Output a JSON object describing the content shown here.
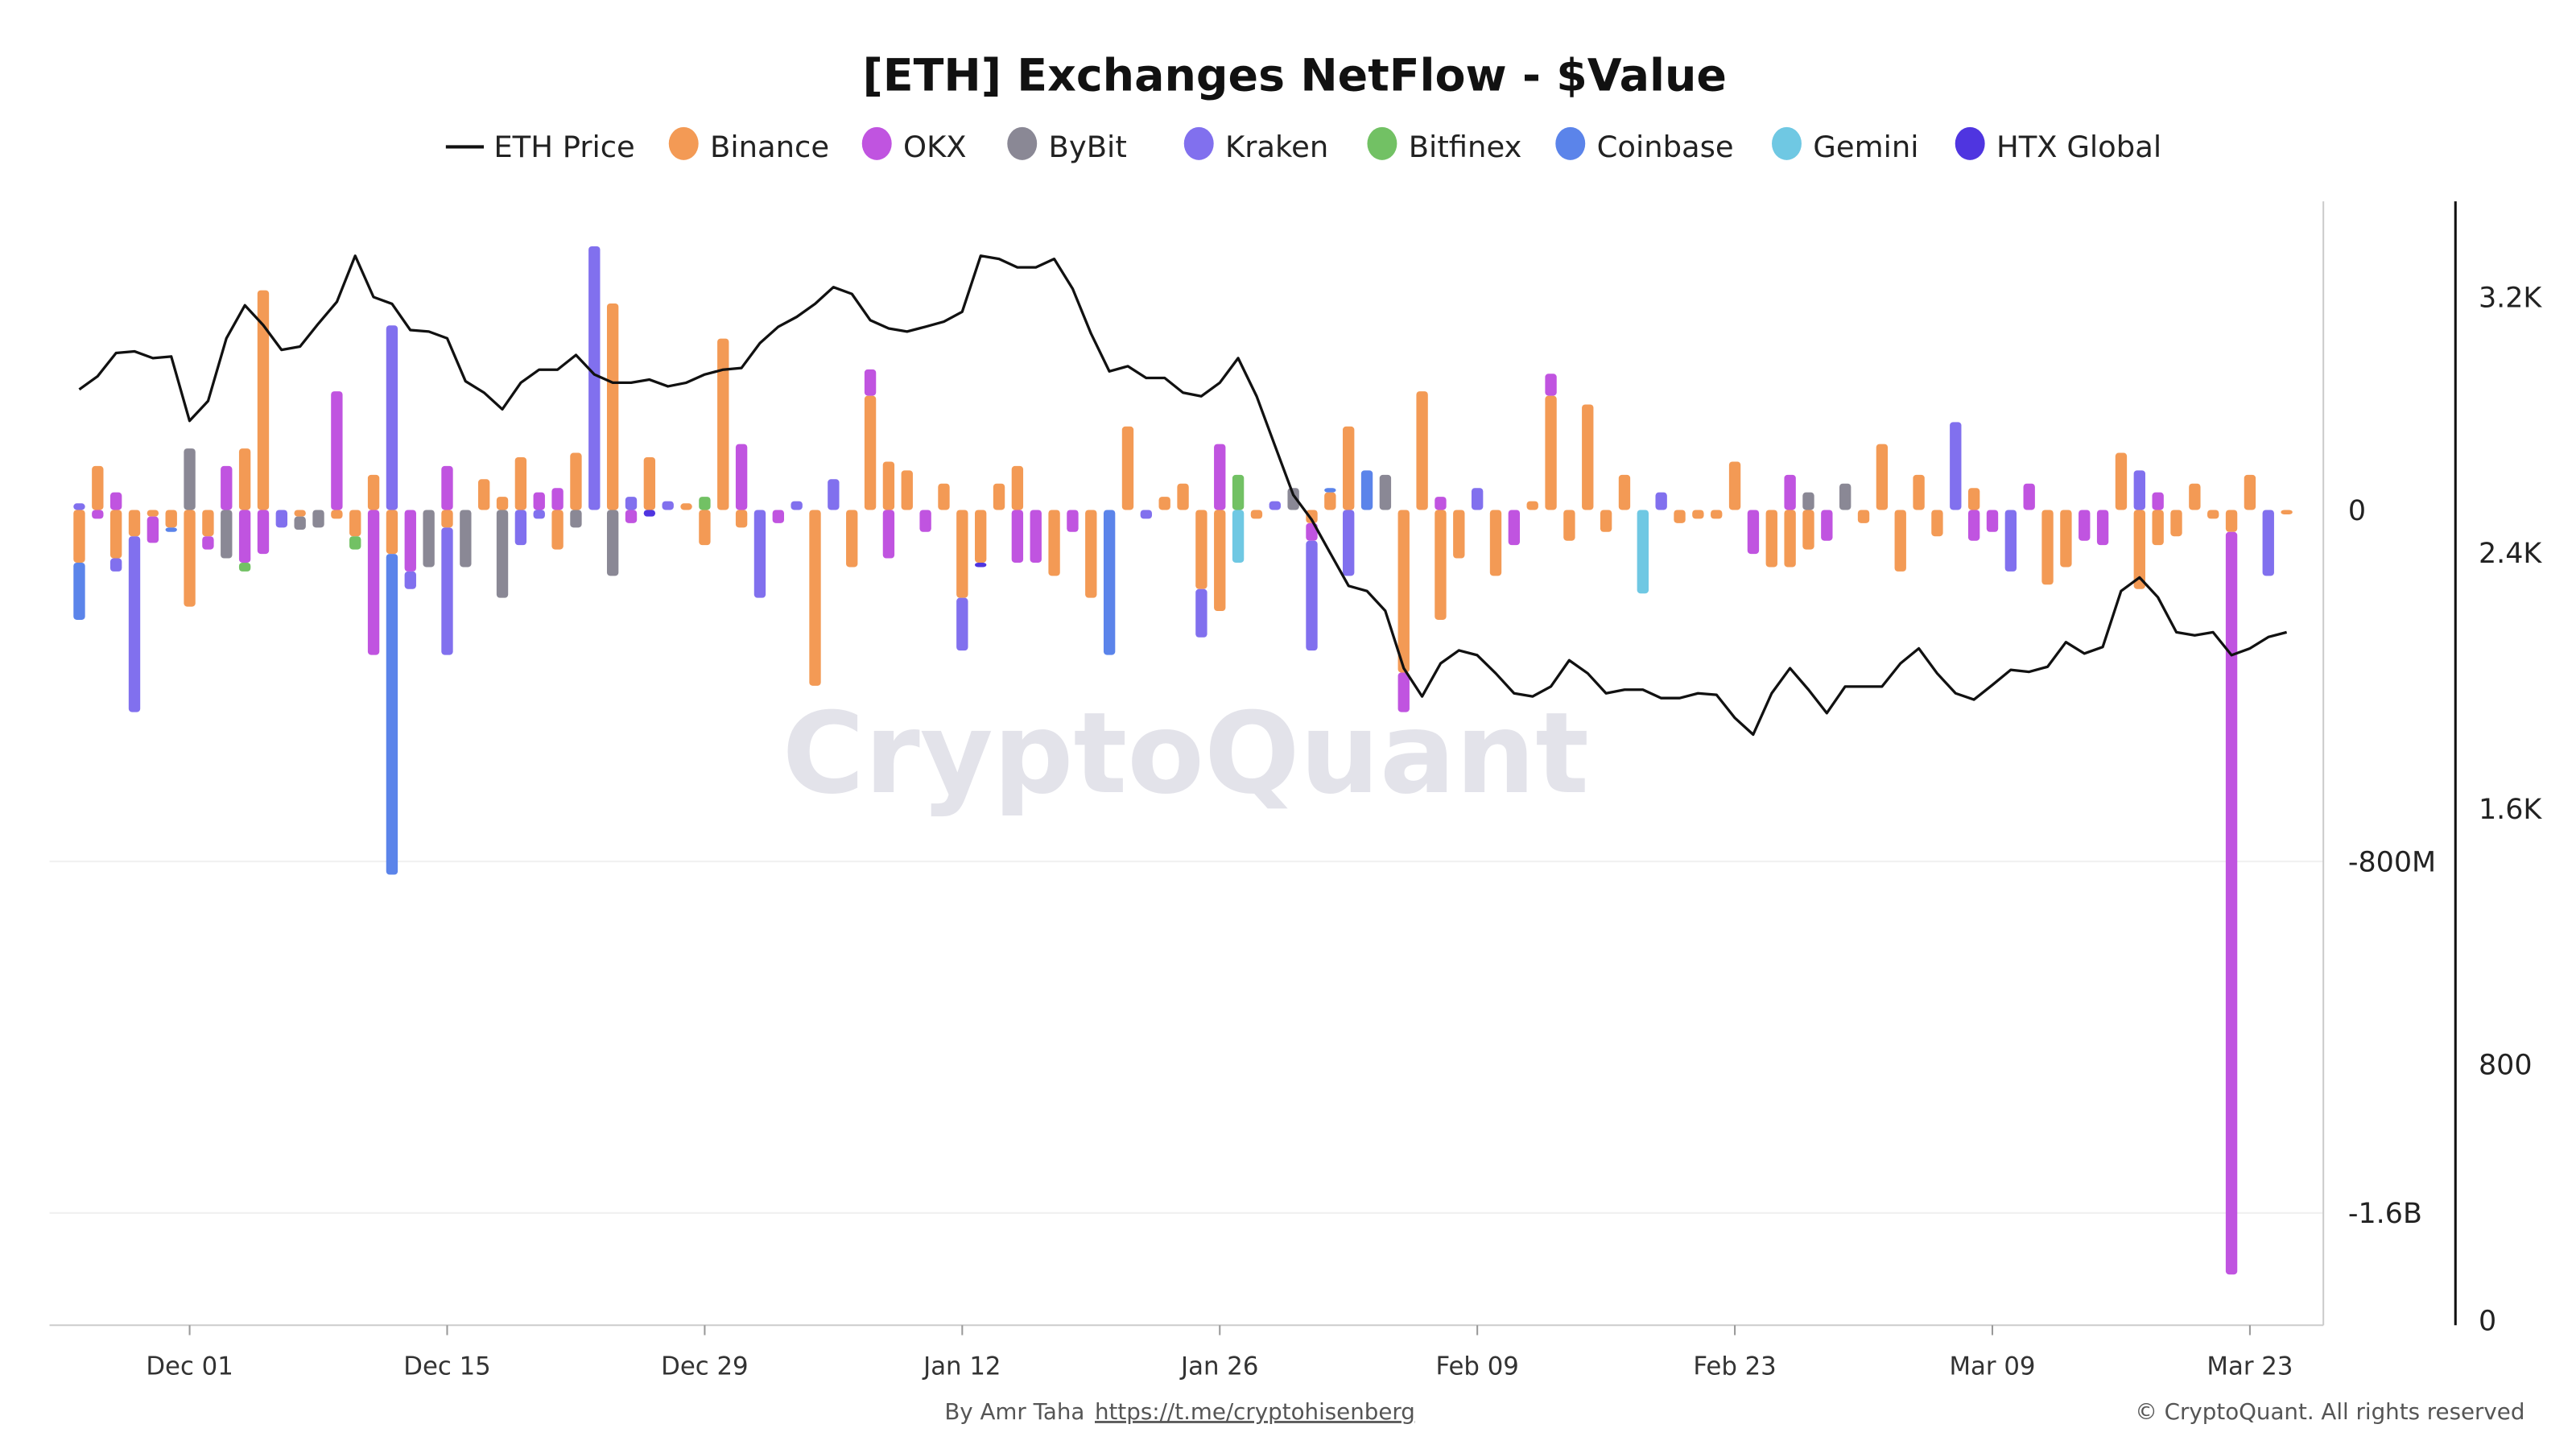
{
  "chart_data": {
    "type": "bar",
    "title": "[ETH] Exchanges NetFlow - $Value",
    "x_range": [
      "Nov 25",
      "Mar 25"
    ],
    "x_tick_labels": [
      "Dec 01",
      "Dec 15",
      "Dec 29",
      "Jan 12",
      "Jan 26",
      "Feb 09",
      "Feb 23",
      "Mar 09",
      "Mar 23"
    ],
    "left_axis": {
      "unit": "USD millions",
      "range": [
        -1800,
        600
      ],
      "tick_values": [
        0,
        -800,
        -1600
      ],
      "tick_labels": [
        "0",
        "-800M",
        "-1.6B"
      ]
    },
    "right_axis": {
      "range": [
        0,
        3500
      ],
      "tick_values": [
        3200,
        2400,
        1600,
        800,
        0
      ],
      "tick_labels": [
        "3.2K",
        "2.4K",
        "1.6K",
        "800",
        "0"
      ]
    },
    "grid": true,
    "legend_position": "top",
    "stacked": true,
    "line_series": {
      "name": "ETH Price",
      "color": "#111111",
      "values": [
        2911,
        2952,
        3025,
        3030,
        3009,
        3014,
        2813,
        2875,
        3071,
        3174,
        3112,
        3035,
        3045,
        3117,
        3185,
        3329,
        3200,
        3179,
        3097,
        3092,
        3071,
        2937,
        2901,
        2849,
        2932,
        2973,
        2973,
        3019,
        2958,
        2932,
        2932,
        2942,
        2921,
        2932,
        2958,
        2973,
        2978,
        3056,
        3107,
        3138,
        3179,
        3231,
        3210,
        3128,
        3102,
        3092,
        3107,
        3123,
        3154,
        3329,
        3319,
        3293,
        3293,
        3319,
        3226,
        3086,
        2968,
        2984,
        2947,
        2947,
        2901,
        2890,
        2932,
        3009,
        2890,
        2735,
        2581,
        2503,
        2400,
        2297,
        2281,
        2219,
        2039,
        1951,
        2054,
        2095,
        2080,
        2023,
        1961,
        1951,
        1982,
        2064,
        2023,
        1961,
        1972,
        1972,
        1946,
        1946,
        1961,
        1956,
        1884,
        1832,
        1961,
        2039,
        1972,
        1899,
        1982,
        1982,
        1982,
        2054,
        2101,
        2023,
        1961,
        1941,
        1987,
        2034,
        2028,
        2044,
        2121,
        2085,
        2106,
        2281,
        2323,
        2261,
        2152,
        2142,
        2152,
        2080,
        2101,
        2137,
        2152
      ]
    },
    "series": [
      {
        "name": "Binance",
        "color": "#f39a55",
        "values": [
          -120,
          100,
          -110,
          -60,
          -15,
          -40,
          -220,
          -60,
          0,
          140,
          500,
          0,
          -15,
          0,
          -20,
          -60,
          80,
          -100,
          0,
          0,
          -40,
          0,
          70,
          30,
          120,
          0,
          -90,
          130,
          0,
          470,
          0,
          120,
          0,
          15,
          -80,
          390,
          -40,
          0,
          0,
          0,
          -400,
          0,
          -130,
          260,
          110,
          90,
          0,
          60,
          -200,
          -120,
          60,
          100,
          0,
          -150,
          0,
          -200,
          0,
          190,
          0,
          30,
          60,
          -180,
          -230,
          0,
          -20,
          0,
          0,
          -30,
          40,
          190,
          0,
          0,
          -370,
          270,
          -250,
          -110,
          0,
          -150,
          0,
          20,
          260,
          -70,
          240,
          -50,
          80,
          0,
          0,
          -30,
          -20,
          -20,
          110,
          0,
          -130,
          -130,
          -90,
          0,
          0,
          -30,
          150,
          -140,
          80,
          -60,
          0,
          50,
          0,
          0,
          0,
          -170,
          -130,
          0,
          0,
          130,
          -180,
          -80,
          -60,
          60,
          -20,
          -50,
          80,
          0,
          -10
        ]
      },
      {
        "name": "OKX",
        "color": "#c054e0",
        "values": [
          0,
          -20,
          40,
          0,
          -60,
          0,
          0,
          -30,
          100,
          -120,
          -100,
          0,
          0,
          0,
          270,
          0,
          -330,
          0,
          -140,
          0,
          100,
          0,
          0,
          0,
          0,
          40,
          50,
          0,
          0,
          0,
          -30,
          0,
          0,
          0,
          0,
          0,
          150,
          0,
          -30,
          0,
          0,
          0,
          0,
          60,
          -110,
          0,
          -50,
          0,
          0,
          0,
          0,
          -120,
          -120,
          0,
          -50,
          0,
          0,
          0,
          0,
          0,
          0,
          0,
          150,
          0,
          0,
          0,
          0,
          -40,
          0,
          0,
          0,
          0,
          -90,
          0,
          30,
          0,
          0,
          0,
          -80,
          0,
          50,
          0,
          0,
          0,
          0,
          0,
          0,
          0,
          0,
          0,
          0,
          -100,
          0,
          80,
          0,
          -70,
          0,
          0,
          0,
          0,
          0,
          0,
          0,
          -70,
          -50,
          0,
          60,
          0,
          0,
          -70,
          -80,
          0,
          0,
          40,
          0,
          0,
          0,
          -1690,
          0,
          0,
          0
        ]
      },
      {
        "name": "ByBit",
        "color": "#8a8895",
        "values": [
          0,
          0,
          0,
          0,
          0,
          0,
          140,
          0,
          -110,
          0,
          0,
          0,
          -30,
          -40,
          0,
          0,
          0,
          0,
          0,
          -130,
          0,
          -130,
          0,
          -200,
          0,
          0,
          0,
          -40,
          0,
          -150,
          0,
          0,
          0,
          0,
          0,
          0,
          0,
          0,
          0,
          0,
          0,
          0,
          0,
          0,
          0,
          0,
          0,
          0,
          0,
          0,
          0,
          0,
          0,
          0,
          0,
          0,
          0,
          0,
          0,
          0,
          0,
          0,
          0,
          0,
          0,
          0,
          50,
          0,
          0,
          0,
          0,
          80,
          0,
          0,
          0,
          0,
          0,
          0,
          0,
          0,
          0,
          0,
          0,
          0,
          0,
          0,
          0,
          0,
          0,
          0,
          0,
          0,
          0,
          0,
          40,
          0,
          60,
          0,
          0,
          0,
          0,
          0,
          0,
          0,
          0,
          0,
          0,
          0,
          0,
          0,
          0,
          0,
          0,
          0,
          0,
          0,
          0,
          0,
          0,
          0,
          0
        ]
      },
      {
        "name": "Kraken",
        "color": "#8170ee",
        "values": [
          15,
          0,
          -30,
          -400,
          0,
          0,
          0,
          0,
          0,
          0,
          0,
          -40,
          0,
          0,
          0,
          0,
          0,
          420,
          -40,
          0,
          -290,
          0,
          0,
          0,
          -80,
          -20,
          0,
          0,
          600,
          0,
          30,
          0,
          20,
          0,
          0,
          0,
          0,
          -200,
          0,
          20,
          0,
          70,
          0,
          0,
          0,
          0,
          0,
          0,
          -120,
          0,
          0,
          0,
          0,
          0,
          0,
          0,
          0,
          0,
          -20,
          0,
          0,
          -110,
          0,
          0,
          0,
          20,
          0,
          -250,
          0,
          -150,
          0,
          0,
          0,
          0,
          0,
          0,
          50,
          0,
          0,
          0,
          0,
          0,
          0,
          0,
          0,
          0,
          40,
          0,
          0,
          0,
          0,
          0,
          0,
          0,
          0,
          0,
          0,
          0,
          0,
          0,
          0,
          0,
          200,
          0,
          0,
          -140,
          0,
          0,
          0,
          0,
          0,
          0,
          90,
          0,
          0,
          0,
          0,
          0,
          0,
          -150,
          0
        ]
      },
      {
        "name": "Bitfinex",
        "color": "#72c164",
        "values": [
          0,
          0,
          0,
          0,
          0,
          0,
          0,
          0,
          0,
          -20,
          0,
          0,
          0,
          0,
          0,
          -30,
          0,
          0,
          0,
          0,
          0,
          0,
          0,
          0,
          0,
          0,
          0,
          0,
          0,
          0,
          0,
          0,
          0,
          0,
          30,
          0,
          0,
          0,
          0,
          0,
          0,
          0,
          0,
          0,
          0,
          0,
          0,
          0,
          0,
          0,
          0,
          0,
          0,
          0,
          0,
          0,
          0,
          0,
          0,
          0,
          0,
          0,
          0,
          80,
          0,
          0,
          0,
          0,
          0,
          0,
          0,
          0,
          0,
          0,
          0,
          0,
          0,
          0,
          0,
          0,
          0,
          0,
          0,
          0,
          0,
          0,
          0,
          0,
          0,
          0,
          0,
          0,
          0,
          0,
          0,
          0,
          0,
          0,
          0,
          0,
          0,
          0,
          0,
          0,
          0,
          0,
          0,
          0,
          0,
          0,
          0,
          0,
          0,
          0,
          0,
          0,
          0,
          0,
          0,
          0,
          0
        ]
      },
      {
        "name": "Coinbase",
        "color": "#5b84ea",
        "values": [
          -130,
          0,
          0,
          0,
          0,
          -10,
          0,
          0,
          0,
          0,
          0,
          0,
          0,
          0,
          0,
          0,
          0,
          -730,
          0,
          0,
          0,
          0,
          0,
          0,
          0,
          0,
          0,
          0,
          0,
          0,
          0,
          0,
          0,
          0,
          0,
          0,
          0,
          0,
          0,
          0,
          0,
          0,
          0,
          0,
          0,
          0,
          0,
          0,
          0,
          0,
          0,
          0,
          0,
          0,
          0,
          0,
          -330,
          0,
          0,
          0,
          0,
          0,
          0,
          0,
          0,
          0,
          0,
          0,
          10,
          0,
          90,
          0,
          0,
          0,
          0,
          0,
          0,
          0,
          0,
          0,
          0,
          0,
          0,
          0,
          0,
          0,
          0,
          0,
          0,
          0,
          0,
          0,
          0,
          0,
          0,
          0,
          0,
          0,
          0,
          0,
          0,
          0,
          0,
          0,
          0,
          0,
          0,
          0,
          0,
          0,
          0,
          0,
          0,
          0,
          0,
          0,
          0,
          0,
          0,
          0,
          0
        ]
      },
      {
        "name": "Gemini",
        "color": "#6fc8e3",
        "values": [
          0,
          0,
          0,
          0,
          0,
          0,
          0,
          0,
          0,
          0,
          0,
          0,
          0,
          0,
          0,
          0,
          0,
          0,
          0,
          0,
          0,
          0,
          0,
          0,
          0,
          0,
          0,
          0,
          0,
          0,
          0,
          0,
          0,
          0,
          0,
          0,
          0,
          0,
          0,
          0,
          0,
          0,
          0,
          0,
          0,
          0,
          0,
          0,
          0,
          0,
          0,
          0,
          0,
          0,
          0,
          0,
          0,
          0,
          0,
          0,
          0,
          0,
          0,
          -120,
          0,
          0,
          0,
          0,
          0,
          0,
          0,
          0,
          0,
          0,
          0,
          0,
          0,
          0,
          0,
          0,
          0,
          0,
          0,
          0,
          0,
          -190,
          0,
          0,
          0,
          0,
          0,
          0,
          0,
          0,
          0,
          0,
          0,
          0,
          0,
          0,
          0,
          0,
          0,
          0,
          0,
          0,
          0,
          0,
          0,
          0,
          0,
          0,
          0,
          0,
          0,
          0,
          0,
          0,
          0,
          0,
          0
        ]
      },
      {
        "name": "HTX Global",
        "color": "#4f35e0",
        "values": [
          0,
          0,
          0,
          0,
          0,
          0,
          0,
          0,
          0,
          0,
          0,
          0,
          0,
          0,
          0,
          0,
          0,
          0,
          0,
          0,
          0,
          0,
          0,
          0,
          0,
          0,
          0,
          0,
          0,
          0,
          0,
          -15,
          0,
          0,
          0,
          0,
          0,
          0,
          0,
          0,
          0,
          0,
          0,
          0,
          0,
          0,
          0,
          0,
          0,
          -10,
          0,
          0,
          0,
          0,
          0,
          0,
          0,
          0,
          0,
          0,
          0,
          0,
          0,
          0,
          0,
          0,
          0,
          0,
          0,
          0,
          0,
          0,
          0,
          0,
          0,
          0,
          0,
          0,
          0,
          0,
          0,
          0,
          0,
          0,
          0,
          0,
          0,
          0,
          0,
          0,
          0,
          0,
          0,
          0,
          0,
          0,
          0,
          0,
          0,
          0,
          0,
          0,
          0,
          0,
          0,
          0,
          0,
          0,
          0,
          0,
          0,
          0,
          0,
          0,
          0,
          0,
          0,
          0,
          0,
          0,
          0
        ]
      }
    ]
  },
  "legend": {
    "price_label": "ETH Price",
    "labels": [
      "Binance",
      "OKX",
      "ByBit",
      "Kraken",
      "Bitfinex",
      "Coinbase",
      "Gemini",
      "HTX Global"
    ]
  },
  "watermark": "CryptoQuant",
  "footer": {
    "author": "By Amr Taha",
    "link": "https://t.me/cryptohisenberg",
    "copyright": "© CryptoQuant. All rights reserved"
  }
}
